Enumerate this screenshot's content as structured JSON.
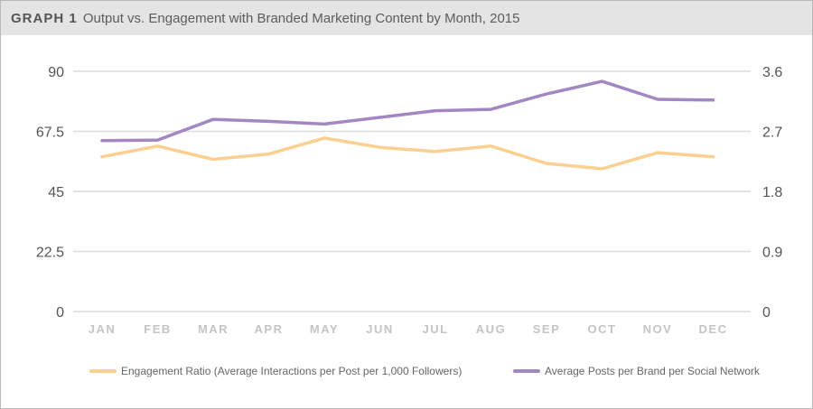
{
  "header": {
    "label": "GRAPH 1",
    "title": "Output vs. Engagement with Branded Marketing Content by Month, 2015"
  },
  "chart_data": {
    "type": "line",
    "title": "Output vs. Engagement with Branded Marketing Content by Month, 2015",
    "categories": [
      "JAN",
      "FEB",
      "MAR",
      "APR",
      "MAY",
      "JUN",
      "JUL",
      "AUG",
      "SEP",
      "OCT",
      "NOV",
      "DEC"
    ],
    "y_left": {
      "ylim": [
        0,
        90
      ],
      "ticks": [
        "0",
        "22.5",
        "45",
        "67.5",
        "90"
      ]
    },
    "y_right": {
      "ylim": [
        0,
        3.6
      ],
      "ticks": [
        "0",
        "0.9",
        "1.8",
        "2.7",
        "3.6"
      ]
    },
    "series": [
      {
        "name": "Engagement Ratio (Average Interactions per Post per 1,000 Followers)",
        "axis": "left",
        "color": "#f9d08f",
        "values": [
          58,
          62,
          57,
          59,
          65,
          61.5,
          60,
          62,
          55.5,
          53.5,
          59.5,
          58
        ]
      },
      {
        "name": "Average Posts per Brand per Social Network",
        "axis": "right",
        "color": "#a287c2",
        "values": [
          2.56,
          2.57,
          2.88,
          2.85,
          2.81,
          2.91,
          3.01,
          3.03,
          3.26,
          3.45,
          3.18,
          3.17
        ]
      }
    ],
    "grid": "horizontal",
    "legend_position": "bottom"
  }
}
